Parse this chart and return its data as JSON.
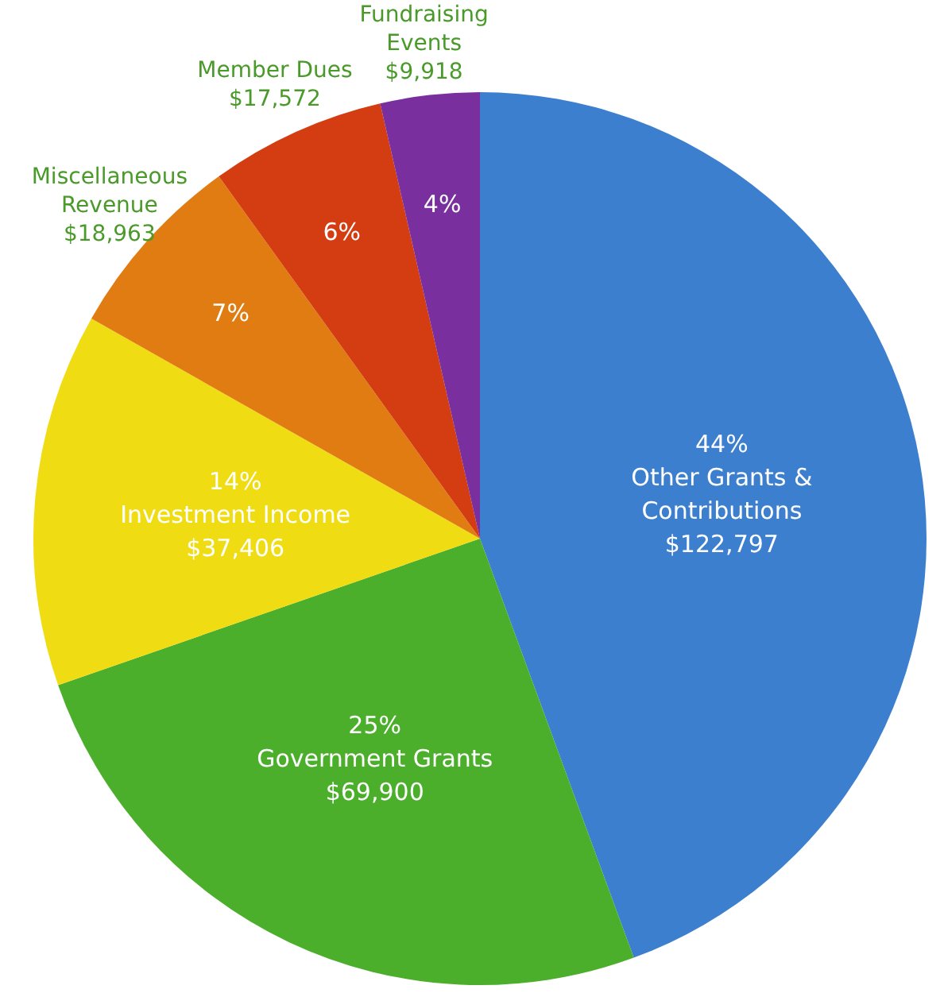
{
  "chart_data": {
    "type": "pie",
    "categories": [
      "Other Grants & Contributions",
      "Government Grants",
      "Investment Income",
      "Miscellaneous Revenue",
      "Member Dues",
      "Fundraising Events"
    ],
    "values": [
      122797,
      69900,
      37406,
      18963,
      17572,
      9918
    ],
    "value_labels": [
      "$122,797",
      "$69,900",
      "$37,406",
      "$18,963",
      "$17,572",
      "$9,918"
    ],
    "annotations": [
      "44%",
      "25%",
      "14%",
      "7%",
      "6%",
      "4%"
    ],
    "colors": [
      "#3d7fcf",
      "#4caf2b",
      "#f0dc12",
      "#e07c12",
      "#d43c12",
      "#7a2f9e"
    ],
    "legend": false
  }
}
